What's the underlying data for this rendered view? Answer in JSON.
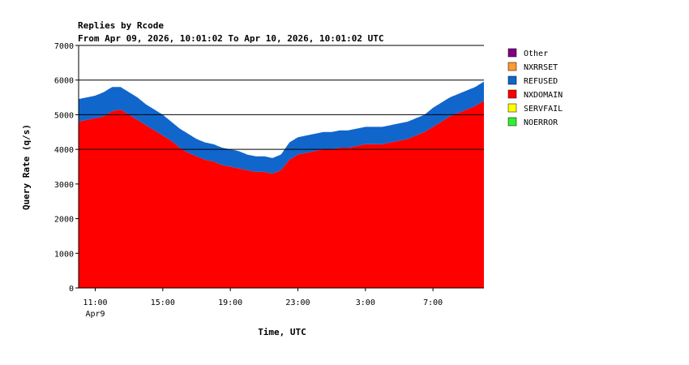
{
  "chart_data": {
    "type": "area",
    "title": "Replies by Rcode",
    "subtitle": "From Apr 09, 2026, 10:01:02 To Apr 10, 2026, 10:01:02 UTC",
    "xlabel": "Time, UTC",
    "ylabel": "Query Rate (q/s)",
    "ylim": [
      0,
      7000
    ],
    "yticks": [
      0,
      1000,
      2000,
      3000,
      4000,
      5000,
      6000,
      7000
    ],
    "xlim_hours": [
      10.0167,
      34.0167
    ],
    "xticks": [
      {
        "hour": 11,
        "label": "11:00",
        "sublabel": "Apr9"
      },
      {
        "hour": 15,
        "label": "15:00",
        "sublabel": ""
      },
      {
        "hour": 19,
        "label": "19:00",
        "sublabel": ""
      },
      {
        "hour": 23,
        "label": "23:00",
        "sublabel": ""
      },
      {
        "hour": 27,
        "label": "3:00",
        "sublabel": ""
      },
      {
        "hour": 31,
        "label": "7:00",
        "sublabel": ""
      }
    ],
    "gridlines": [
      4000,
      5000,
      6000,
      7000
    ],
    "legend_position": "right",
    "stack_order": [
      "NOERROR",
      "SERVFAIL",
      "NXDOMAIN",
      "REFUSED",
      "NXRRSET",
      "Other"
    ],
    "series": [
      {
        "name": "Other",
        "color": "#800080"
      },
      {
        "name": "NXRRSET",
        "color": "#ff9933"
      },
      {
        "name": "REFUSED",
        "color": "#1166cc"
      },
      {
        "name": "NXDOMAIN",
        "color": "#ff0000"
      },
      {
        "name": "SERVFAIL",
        "color": "#ffff00"
      },
      {
        "name": "NOERROR",
        "color": "#33ee33"
      }
    ],
    "x": [
      10.0,
      10.5,
      11.0,
      11.5,
      12.0,
      12.5,
      13.0,
      13.5,
      14.0,
      14.5,
      15.0,
      15.5,
      16.0,
      16.5,
      17.0,
      17.5,
      18.0,
      18.5,
      19.0,
      19.5,
      20.0,
      20.5,
      21.0,
      21.5,
      22.0,
      22.5,
      23.0,
      23.5,
      24.0,
      24.5,
      25.0,
      25.5,
      26.0,
      26.5,
      27.0,
      27.5,
      28.0,
      28.5,
      29.0,
      29.5,
      30.0,
      30.5,
      31.0,
      31.5,
      32.0,
      32.5,
      33.0,
      33.5,
      34.0
    ],
    "nxdomain": [
      4800,
      4850,
      4900,
      4950,
      5100,
      5150,
      5000,
      4850,
      4700,
      4550,
      4400,
      4250,
      4050,
      3900,
      3800,
      3700,
      3650,
      3550,
      3500,
      3450,
      3400,
      3350,
      3350,
      3300,
      3400,
      3700,
      3850,
      3900,
      3950,
      4000,
      4000,
      4050,
      4050,
      4100,
      4150,
      4150,
      4150,
      4200,
      4250,
      4300,
      4400,
      4500,
      4650,
      4800,
      4950,
      5050,
      5150,
      5250,
      5400
    ],
    "refused": [
      650,
      650,
      650,
      700,
      700,
      650,
      650,
      650,
      600,
      600,
      600,
      550,
      550,
      550,
      500,
      500,
      500,
      500,
      500,
      500,
      450,
      450,
      450,
      450,
      450,
      500,
      500,
      500,
      500,
      500,
      500,
      500,
      500,
      500,
      500,
      500,
      500,
      500,
      500,
      500,
      500,
      500,
      550,
      550,
      550,
      550,
      550,
      550,
      550
    ]
  }
}
